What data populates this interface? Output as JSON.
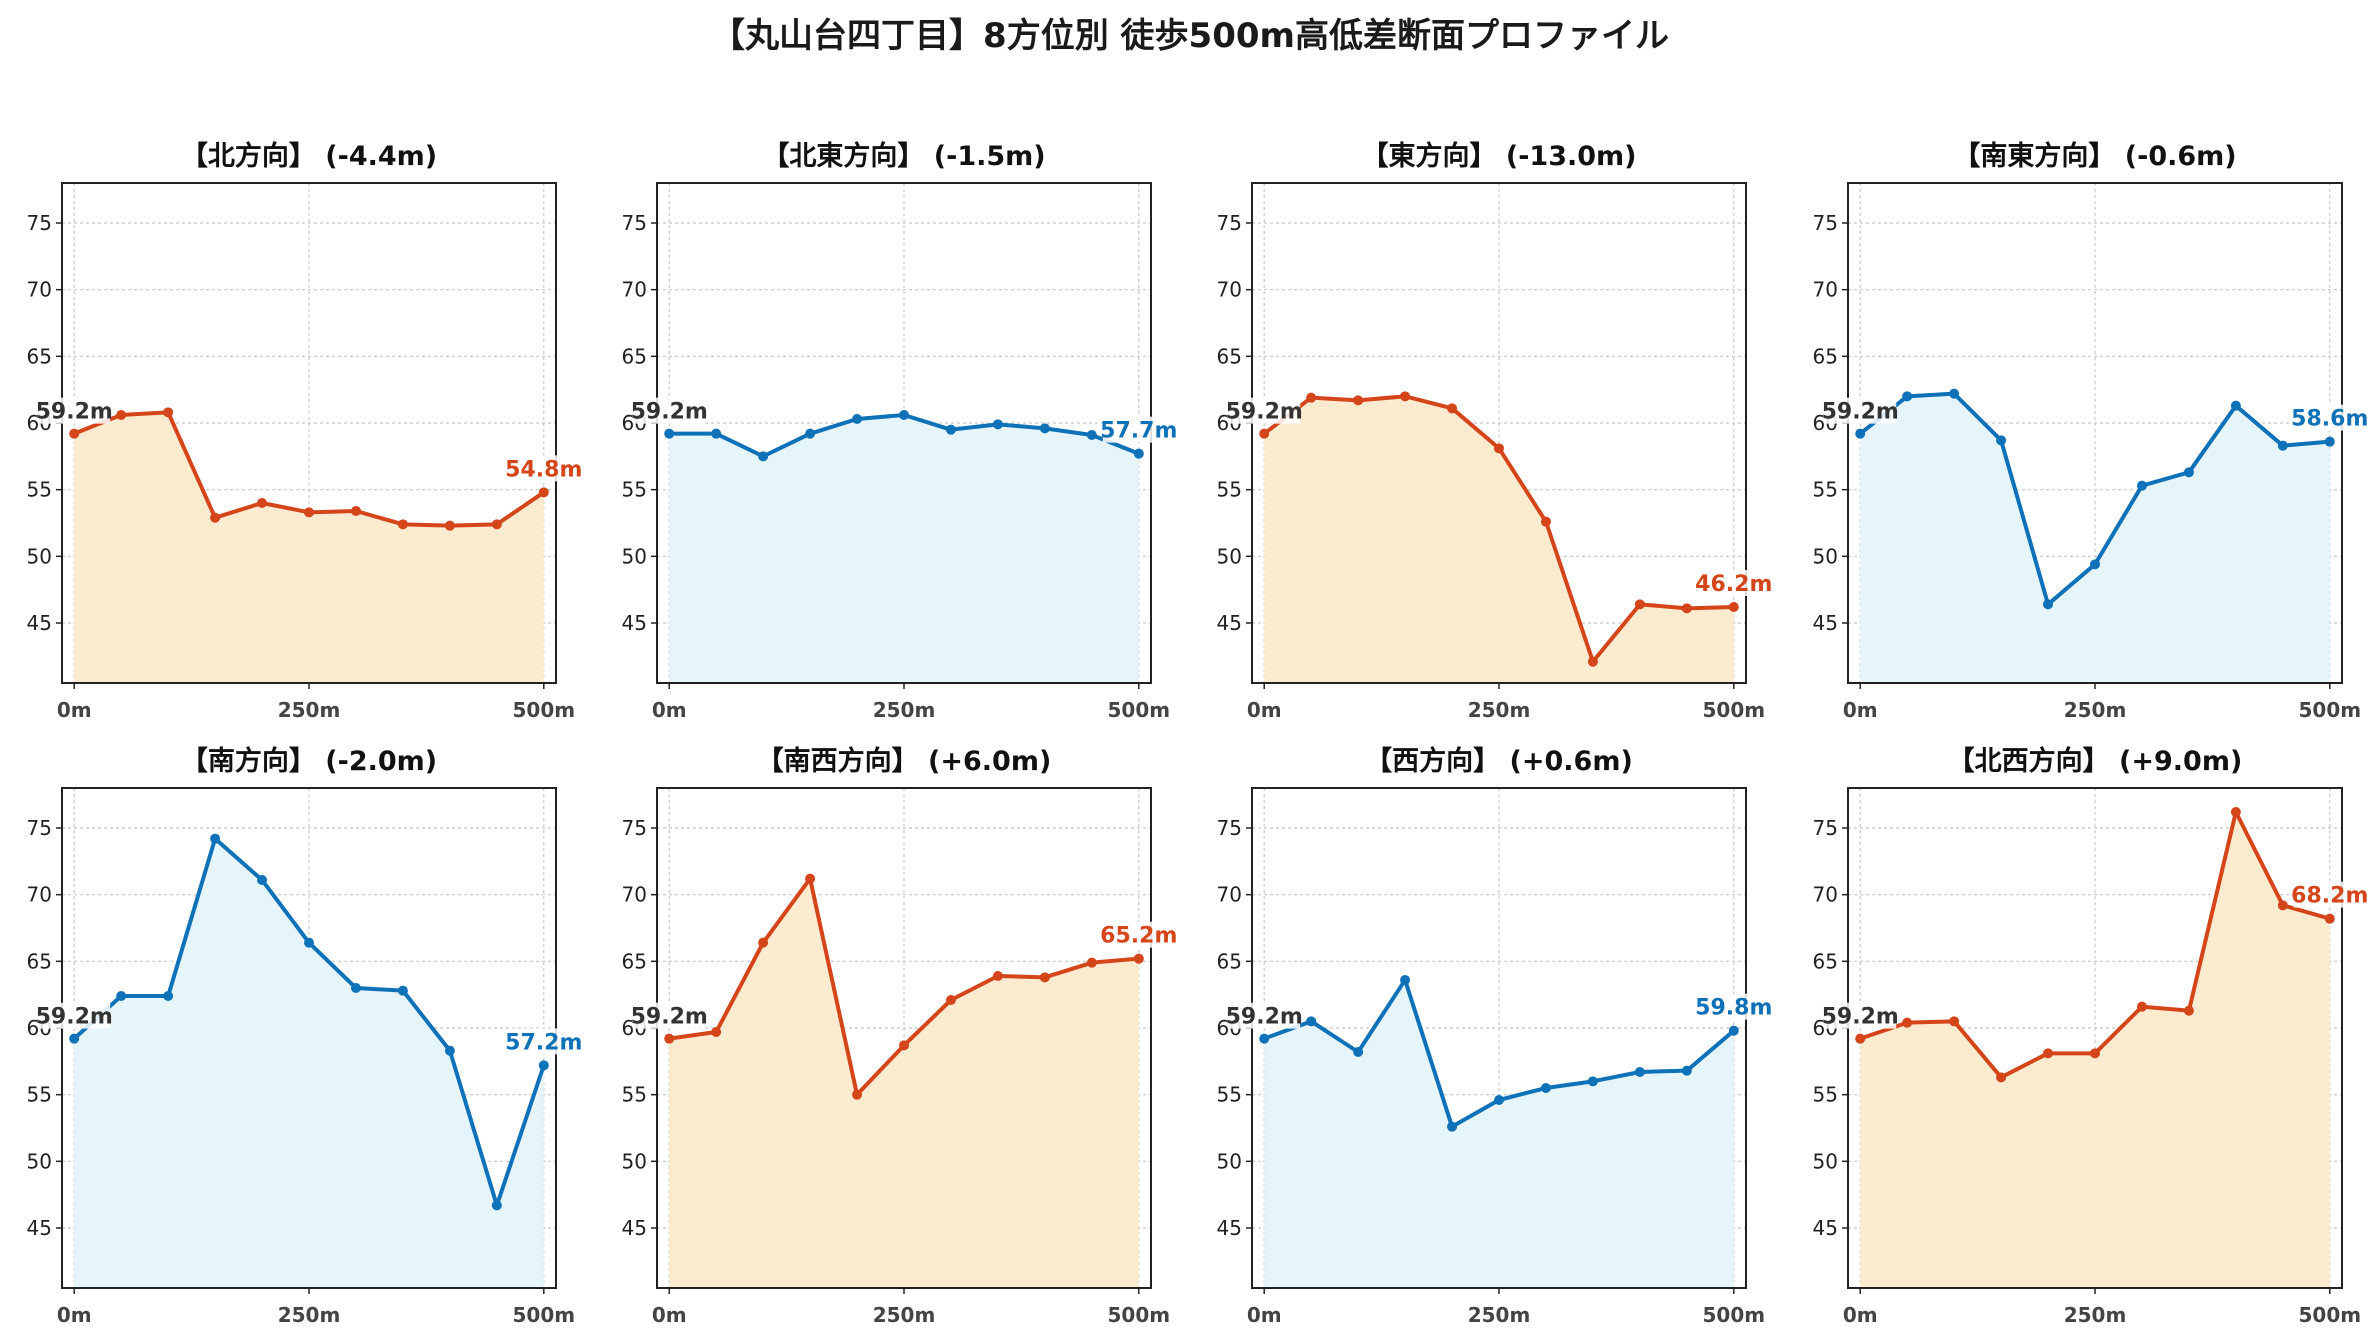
{
  "title": "【丸山台四丁目】8方位別 徒歩500m高低差断面プロファイル",
  "colors": {
    "down": "#d4451a",
    "up": "#0f72b8",
    "down_fill": "#fdebd0",
    "up_fill": "#e6f4fb",
    "start_label": "#333333"
  },
  "chart_data": [
    {
      "type": "area",
      "title": "【北方向】 (-4.4m)",
      "color": "down",
      "x": [
        0,
        50,
        100,
        150,
        200,
        250,
        300,
        350,
        400,
        450,
        500
      ],
      "y": [
        59.2,
        60.6,
        60.8,
        52.9,
        54.0,
        53.3,
        53.4,
        52.4,
        52.3,
        52.4,
        54.8
      ],
      "start_label": "59.2m",
      "end_label": "54.8m"
    },
    {
      "type": "area",
      "title": "【北東方向】 (-1.5m)",
      "color": "up",
      "x": [
        0,
        50,
        100,
        150,
        200,
        250,
        300,
        350,
        400,
        450,
        500
      ],
      "y": [
        59.2,
        59.2,
        57.5,
        59.2,
        60.3,
        60.6,
        59.5,
        59.9,
        59.6,
        59.1,
        57.7
      ],
      "start_label": "59.2m",
      "end_label": "57.7m"
    },
    {
      "type": "area",
      "title": "【東方向】 (-13.0m)",
      "color": "down",
      "x": [
        0,
        50,
        100,
        150,
        200,
        250,
        300,
        350,
        400,
        450,
        500
      ],
      "y": [
        59.2,
        61.9,
        61.7,
        62.0,
        61.1,
        58.1,
        52.6,
        42.1,
        46.4,
        46.1,
        46.2
      ],
      "start_label": "59.2m",
      "end_label": "46.2m"
    },
    {
      "type": "area",
      "title": "【南東方向】 (-0.6m)",
      "color": "up",
      "x": [
        0,
        50,
        100,
        150,
        200,
        250,
        300,
        350,
        400,
        450,
        500
      ],
      "y": [
        59.2,
        62.0,
        62.2,
        58.7,
        46.4,
        49.4,
        55.3,
        56.3,
        61.3,
        58.3,
        58.6
      ],
      "start_label": "59.2m",
      "end_label": "58.6m"
    },
    {
      "type": "area",
      "title": "【南方向】 (-2.0m)",
      "color": "up",
      "x": [
        0,
        50,
        100,
        150,
        200,
        250,
        300,
        350,
        400,
        450,
        500
      ],
      "y": [
        59.2,
        62.4,
        62.4,
        74.2,
        71.1,
        66.4,
        63.0,
        62.8,
        58.3,
        46.7,
        57.2
      ],
      "start_label": "59.2m",
      "end_label": "57.2m"
    },
    {
      "type": "area",
      "title": "【南西方向】 (+6.0m)",
      "color": "down",
      "x": [
        0,
        50,
        100,
        150,
        200,
        250,
        300,
        350,
        400,
        450,
        500
      ],
      "y": [
        59.2,
        59.7,
        66.4,
        71.2,
        55.0,
        58.7,
        62.1,
        63.9,
        63.8,
        64.9,
        65.2
      ],
      "start_label": "59.2m",
      "end_label": "65.2m"
    },
    {
      "type": "area",
      "title": "【西方向】 (+0.6m)",
      "color": "up",
      "x": [
        0,
        50,
        100,
        150,
        200,
        250,
        300,
        350,
        400,
        450,
        500
      ],
      "y": [
        59.2,
        60.5,
        58.2,
        63.6,
        52.6,
        54.6,
        55.5,
        56.0,
        56.7,
        56.8,
        59.8
      ],
      "start_label": "59.2m",
      "end_label": "59.8m"
    },
    {
      "type": "area",
      "title": "【北西方向】 (+9.0m)",
      "color": "down",
      "x": [
        0,
        50,
        100,
        150,
        200,
        250,
        300,
        350,
        400,
        450,
        500
      ],
      "y": [
        59.2,
        60.4,
        60.5,
        56.3,
        58.1,
        58.1,
        61.6,
        61.3,
        76.2,
        69.2,
        68.2
      ],
      "start_label": "59.2m",
      "end_label": "68.2m"
    }
  ],
  "axes": {
    "xlim": [
      -13,
      513
    ],
    "ylim": [
      40.5,
      78
    ],
    "yticks": [
      45,
      50,
      55,
      60,
      65,
      70,
      75
    ],
    "xticks": [
      0,
      250,
      500
    ],
    "xtick_labels": [
      "0m",
      "250m",
      "500m"
    ],
    "grid": true
  }
}
